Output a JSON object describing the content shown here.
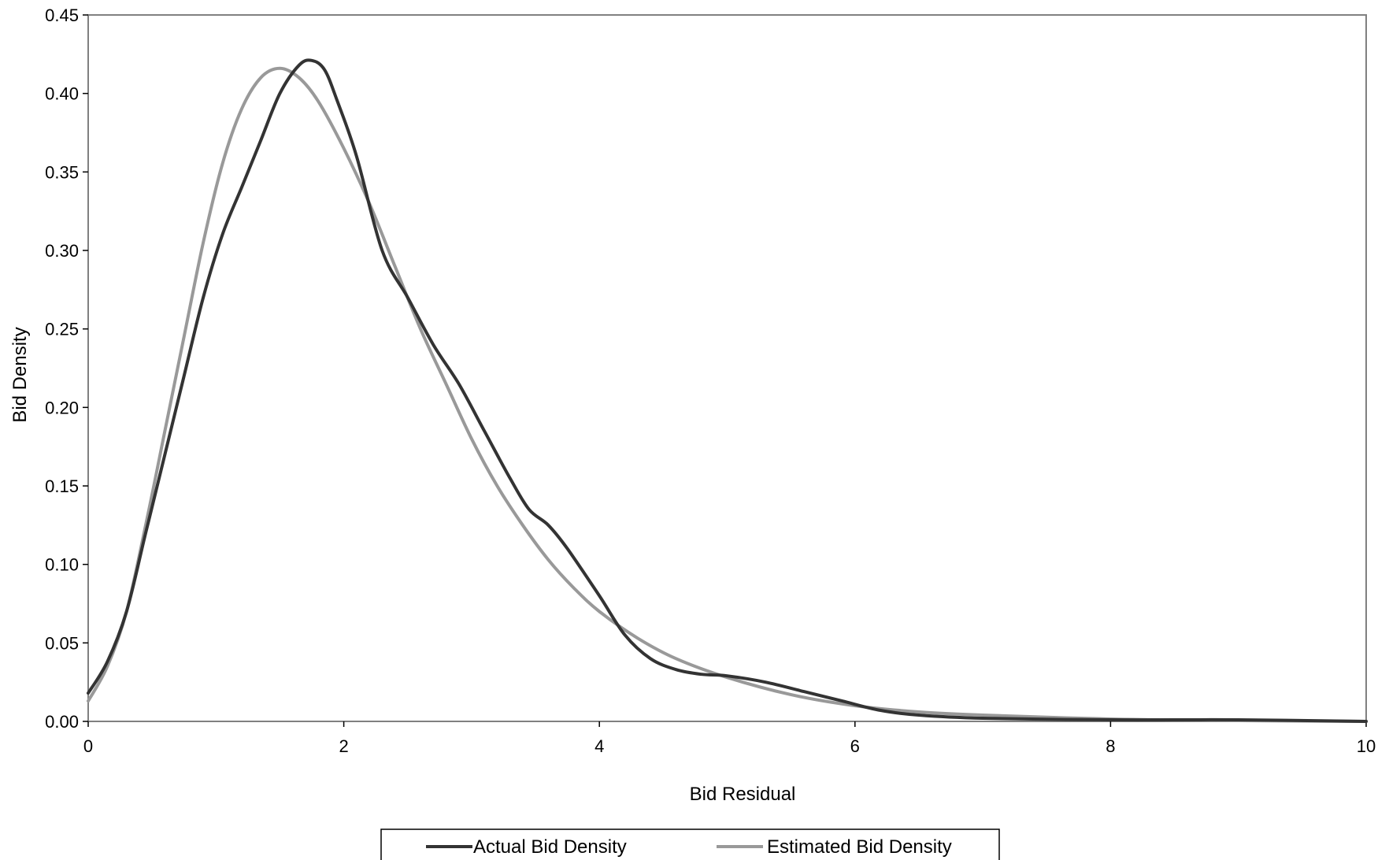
{
  "chart_data": {
    "type": "line",
    "title": "",
    "xlabel": "Bid Residual",
    "ylabel": "Bid Density",
    "xlim": [
      0,
      10
    ],
    "ylim": [
      0,
      0.45
    ],
    "x_ticks": [
      "0",
      "2",
      "4",
      "6",
      "8",
      "10"
    ],
    "y_ticks": [
      "0.00",
      "0.05",
      "0.10",
      "0.15",
      "0.20",
      "0.25",
      "0.30",
      "0.35",
      "0.40",
      "0.45"
    ],
    "grid": false,
    "legend_position": "bottom",
    "series": [
      {
        "name": "Actual Bid Density",
        "color": "#333333",
        "points": [
          [
            0,
            0.018
          ],
          [
            0.15,
            0.038
          ],
          [
            0.3,
            0.07
          ],
          [
            0.45,
            0.12
          ],
          [
            0.6,
            0.17
          ],
          [
            0.75,
            0.22
          ],
          [
            0.9,
            0.27
          ],
          [
            1.05,
            0.31
          ],
          [
            1.2,
            0.34
          ],
          [
            1.35,
            0.37
          ],
          [
            1.5,
            0.4
          ],
          [
            1.65,
            0.418
          ],
          [
            1.75,
            0.421
          ],
          [
            1.85,
            0.415
          ],
          [
            1.95,
            0.395
          ],
          [
            2.1,
            0.36
          ],
          [
            2.3,
            0.3
          ],
          [
            2.5,
            0.27
          ],
          [
            2.7,
            0.24
          ],
          [
            2.9,
            0.215
          ],
          [
            3.1,
            0.185
          ],
          [
            3.3,
            0.155
          ],
          [
            3.45,
            0.135
          ],
          [
            3.6,
            0.125
          ],
          [
            3.75,
            0.11
          ],
          [
            4.0,
            0.08
          ],
          [
            4.2,
            0.055
          ],
          [
            4.4,
            0.04
          ],
          [
            4.6,
            0.033
          ],
          [
            4.8,
            0.03
          ],
          [
            5.0,
            0.029
          ],
          [
            5.3,
            0.025
          ],
          [
            5.6,
            0.019
          ],
          [
            5.9,
            0.013
          ],
          [
            6.2,
            0.007
          ],
          [
            6.5,
            0.004
          ],
          [
            7.0,
            0.002
          ],
          [
            8.0,
            0.001
          ],
          [
            9.0,
            0.001
          ],
          [
            10.0,
            0.0
          ]
        ]
      },
      {
        "name": "Estimated Bid Density",
        "color": "#999999",
        "points": [
          [
            0,
            0.013
          ],
          [
            0.15,
            0.035
          ],
          [
            0.3,
            0.07
          ],
          [
            0.45,
            0.125
          ],
          [
            0.6,
            0.185
          ],
          [
            0.75,
            0.245
          ],
          [
            0.9,
            0.305
          ],
          [
            1.05,
            0.355
          ],
          [
            1.2,
            0.39
          ],
          [
            1.35,
            0.41
          ],
          [
            1.5,
            0.416
          ],
          [
            1.65,
            0.41
          ],
          [
            1.8,
            0.395
          ],
          [
            2.0,
            0.365
          ],
          [
            2.2,
            0.33
          ],
          [
            2.4,
            0.29
          ],
          [
            2.6,
            0.25
          ],
          [
            2.8,
            0.215
          ],
          [
            3.0,
            0.18
          ],
          [
            3.2,
            0.15
          ],
          [
            3.4,
            0.125
          ],
          [
            3.6,
            0.103
          ],
          [
            3.8,
            0.085
          ],
          [
            4.0,
            0.07
          ],
          [
            4.3,
            0.053
          ],
          [
            4.6,
            0.04
          ],
          [
            5.0,
            0.028
          ],
          [
            5.5,
            0.017
          ],
          [
            6.0,
            0.01
          ],
          [
            6.5,
            0.006
          ],
          [
            7.0,
            0.004
          ],
          [
            8.0,
            0.0015
          ],
          [
            9.0,
            0.0005
          ],
          [
            10.0,
            0.0
          ]
        ]
      }
    ]
  }
}
